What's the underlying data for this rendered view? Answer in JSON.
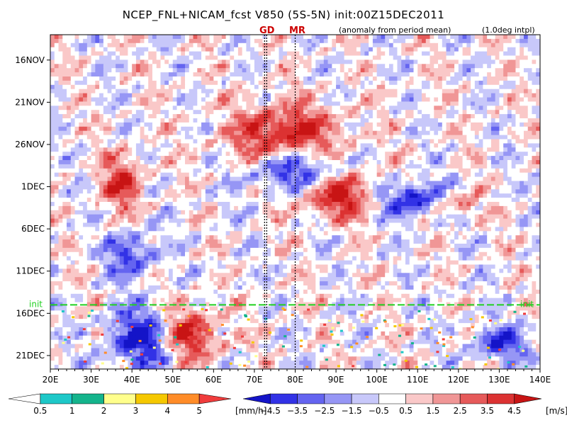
{
  "title": "NCEP_FNL+NICAM_fcst V850 (5S-5N) init:00Z15DEC2011",
  "subtitle": "(anomaly from period mean)",
  "interp_note": "(1.0deg intpl)",
  "vertical_markers": [
    {
      "label": "GD",
      "lon": 72.5
    },
    {
      "label": "MR",
      "lon": 80
    }
  ],
  "init_label": "init",
  "chart_data": {
    "type": "heatmap",
    "x_axis": {
      "range": [
        20,
        140
      ],
      "ticks": [
        20,
        30,
        40,
        50,
        60,
        70,
        80,
        90,
        100,
        110,
        120,
        130,
        140
      ],
      "tick_labels": [
        "20E",
        "30E",
        "40E",
        "50E",
        "60E",
        "70E",
        "80E",
        "90E",
        "100E",
        "110E",
        "120E",
        "130E",
        "140E"
      ]
    },
    "y_axis": {
      "range_days": [
        "13NOV2011",
        "22DEC2011"
      ],
      "ticks": [
        "16NOV",
        "21NOV",
        "26NOV",
        "1DEC",
        "6DEC",
        "11DEC",
        "16DEC",
        "21DEC"
      ],
      "tick_labels": [
        "16NOV",
        "21NOV",
        "26NOV",
        "1DEC",
        "6DEC",
        "11DEC",
        "16DEC",
        "21DEC"
      ],
      "inverted": true
    },
    "init_date": "15DEC2011",
    "anomaly_features": [
      {
        "sign": "positive",
        "lon": [
          65,
          90
        ],
        "date": [
          "22NOV",
          "28NOV"
        ],
        "peak": 4.5
      },
      {
        "sign": "negative",
        "lon": [
          70,
          90
        ],
        "date": [
          "27NOV",
          "1DEC"
        ],
        "peak": -4.5
      },
      {
        "sign": "positive",
        "lon": [
          82,
          100
        ],
        "date": [
          "30NOV",
          "4DEC"
        ],
        "peak": 4.5
      },
      {
        "sign": "negative",
        "lon": [
          100,
          118
        ],
        "date": [
          "1DEC",
          "4DEC"
        ],
        "peak": -4.5
      },
      {
        "sign": "positive",
        "lon": [
          114,
          124
        ],
        "date": [
          "2DEC",
          "4DEC"
        ],
        "peak": 3.5
      },
      {
        "sign": "positive",
        "lon": [
          33,
          42
        ],
        "date": [
          "28NOV",
          "3DEC"
        ],
        "peak": 3.5
      },
      {
        "sign": "negative",
        "lon": [
          35,
          45
        ],
        "date": [
          "7DEC",
          "11DEC"
        ],
        "peak": -3.5
      },
      {
        "sign": "positive",
        "lon": [
          48,
          60
        ],
        "date": [
          "16DEC",
          "21DEC"
        ],
        "peak": 4.5
      },
      {
        "sign": "negative",
        "lon": [
          35,
          50
        ],
        "date": [
          "16DEC",
          "22DEC"
        ],
        "peak": -4.5
      },
      {
        "sign": "negative",
        "lon": [
          124,
          136
        ],
        "date": [
          "18DEC",
          "21DEC"
        ],
        "peak": -3.5
      }
    ],
    "colorbars": [
      {
        "name": "precip",
        "unit": "[mm/h]",
        "levels": [
          0.5,
          1,
          2,
          3,
          4,
          5
        ],
        "level_labels": [
          "0.5",
          "1",
          "2",
          "3",
          "4",
          "5"
        ],
        "colors": [
          "#ffffff",
          "#1ec8c8",
          "#14b48c",
          "#ffff8c",
          "#f5c800",
          "#ff8c28",
          "#f03c3c"
        ]
      },
      {
        "name": "wind",
        "unit": "[m/s]",
        "levels": [
          -4.5,
          -3.5,
          -2.5,
          -1.5,
          -0.5,
          0.5,
          1.5,
          2.5,
          3.5,
          4.5
        ],
        "level_labels": [
          "-4.5",
          "-3.5",
          "-2.5",
          "-1.5",
          "-0.5",
          "0.5",
          "1.5",
          "2.5",
          "3.5",
          "4.5"
        ],
        "colors": [
          "#1414c8",
          "#3232e6",
          "#6464f0",
          "#9696f5",
          "#c8c8fa",
          "#ffffff",
          "#fac8c8",
          "#f09696",
          "#e65a5a",
          "#dc3232",
          "#c81414"
        ]
      }
    ]
  }
}
